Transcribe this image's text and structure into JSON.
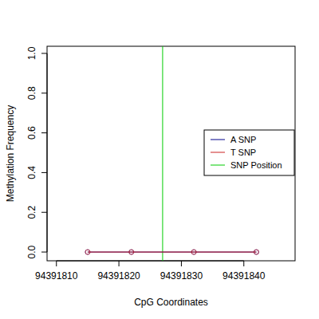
{
  "chart_data": {
    "type": "line",
    "x_label": "CpG Coordinates",
    "y_label": "Methylation Frequency",
    "x": [
      94391815,
      94391822,
      94391832,
      94391842
    ],
    "series": [
      {
        "name": "A SNP",
        "color": "#00008b",
        "values": [
          0,
          0,
          0,
          0
        ],
        "marker": "circle"
      },
      {
        "name": "T SNP",
        "color": "#cc2222",
        "values": [
          0,
          0,
          0,
          0
        ],
        "marker": "circle"
      }
    ],
    "vline": {
      "name": "SNP Position",
      "color": "#00cc00",
      "x": 94391827
    },
    "xlim": [
      94391808.5,
      94391848.2
    ],
    "xticks": [
      94391810,
      94391820,
      94391830,
      94391840
    ],
    "ylim": [
      -0.044,
      1.036
    ],
    "yticks": [
      {
        "value": 0,
        "label": "0.0"
      },
      {
        "value": 0.2,
        "label": "0.2"
      },
      {
        "value": 0.4,
        "label": "0.4"
      },
      {
        "value": 0.6,
        "label": "0.6"
      },
      {
        "value": 0.8,
        "label": "0.8"
      },
      {
        "value": 1.0,
        "label": "1.0"
      }
    ],
    "legend": "right",
    "grid": false
  }
}
